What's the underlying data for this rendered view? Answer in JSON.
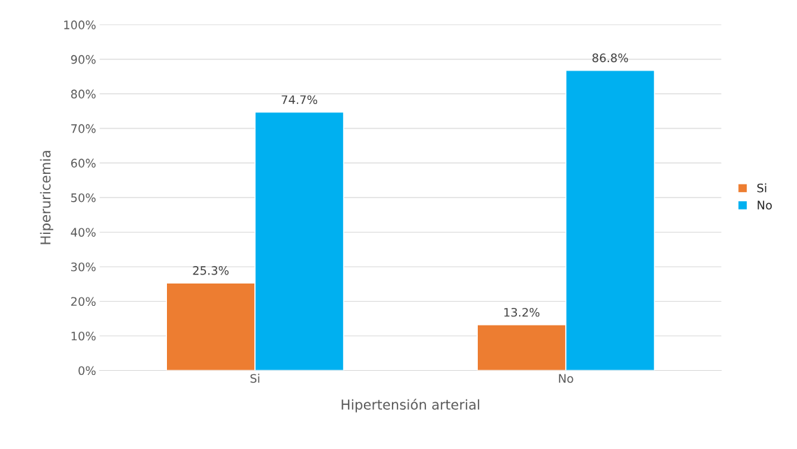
{
  "chart_data": {
    "type": "bar",
    "xlabel": "Hipertensión arterial",
    "ylabel": "Hiperuricemia",
    "categories": [
      "Si",
      "No"
    ],
    "series": [
      {
        "name": "Si",
        "color": "#ed7d31",
        "values": [
          25.3,
          13.2
        ],
        "value_labels": [
          "25.3%",
          "13.2%"
        ]
      },
      {
        "name": "No",
        "color": "#00b0f0",
        "values": [
          74.7,
          86.8
        ],
        "value_labels": [
          "74.7%",
          "86.8%"
        ]
      }
    ],
    "ylim": [
      0,
      100
    ],
    "yticks": [
      {
        "value": 0,
        "label": "0%"
      },
      {
        "value": 10,
        "label": "10%"
      },
      {
        "value": 20,
        "label": "20%"
      },
      {
        "value": 30,
        "label": "30%"
      },
      {
        "value": 40,
        "label": "40%"
      },
      {
        "value": 50,
        "label": "50%"
      },
      {
        "value": 60,
        "label": "60%"
      },
      {
        "value": 70,
        "label": "70%"
      },
      {
        "value": 80,
        "label": "80%"
      },
      {
        "value": 90,
        "label": "90%"
      },
      {
        "value": 100,
        "label": "100%"
      }
    ],
    "grid": "y",
    "legend": "right"
  }
}
